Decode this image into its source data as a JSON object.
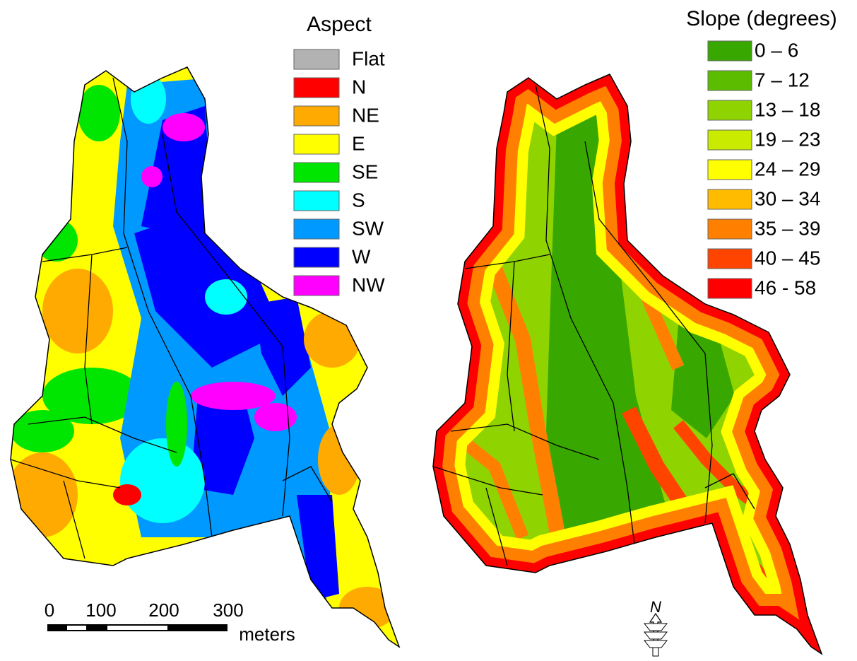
{
  "aspect_legend": {
    "title": "Aspect",
    "items": [
      {
        "label": "Flat",
        "color": "#b2b2b2"
      },
      {
        "label": "N",
        "color": "#ff0000"
      },
      {
        "label": "NE",
        "color": "#ffaa00"
      },
      {
        "label": "E",
        "color": "#ffff00"
      },
      {
        "label": "SE",
        "color": "#00e600"
      },
      {
        "label": "S",
        "color": "#00ffff"
      },
      {
        "label": "SW",
        "color": "#0099ff"
      },
      {
        "label": "W",
        "color": "#0000ff"
      },
      {
        "label": "NW",
        "color": "#ff00ff"
      }
    ]
  },
  "slope_legend": {
    "title": "Slope (degrees)",
    "items": [
      {
        "label": "0 – 6",
        "color": "#38a800"
      },
      {
        "label": "7 – 12",
        "color": "#5cbd00"
      },
      {
        "label": "13 – 18",
        "color": "#8fd400"
      },
      {
        "label": "19 – 23",
        "color": "#c8eb00"
      },
      {
        "label": "24 – 29",
        "color": "#ffff00"
      },
      {
        "label": "30 – 34",
        "color": "#ffbb00"
      },
      {
        "label": "35 – 39",
        "color": "#ff8000"
      },
      {
        "label": "40 – 45",
        "color": "#ff4400"
      },
      {
        "label": "46 - 58",
        "color": "#ff0000"
      }
    ]
  },
  "scale_bar": {
    "ticks": [
      0,
      100,
      200,
      300
    ],
    "unit": "meters"
  },
  "north_arrow": {
    "label": "N"
  }
}
